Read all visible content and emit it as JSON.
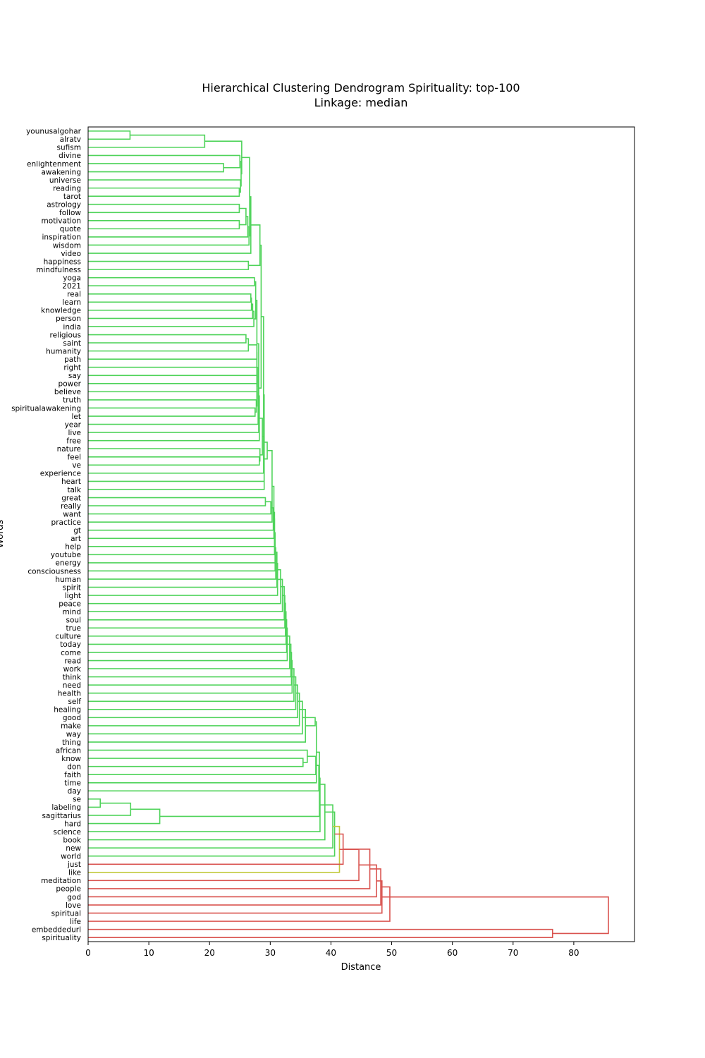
{
  "chart_data": {
    "type": "dendrogram",
    "orientation": "horizontal",
    "title": "Hierarchical Clustering Dendrogram Spirituality: top-100",
    "subtitle": "Linkage: median",
    "xlabel": "Distance",
    "ylabel": "Words",
    "xlim": [
      0,
      90
    ],
    "xticks": [
      0,
      10,
      20,
      30,
      40,
      50,
      60,
      70,
      80
    ],
    "grid": false,
    "colors": {
      "green_cluster": "#4fd35a",
      "yellow_cluster": "#c2c93c",
      "above_threshold": "#d9534f",
      "frame": "#000000"
    },
    "leaves": [
      "younusalgohar",
      "alratv",
      "sufism",
      "divine",
      "enlightenment",
      "awakening",
      "universe",
      "reading",
      "tarot",
      "astrology",
      "follow",
      "motivation",
      "quote",
      "inspiration",
      "wisdom",
      "video",
      "happiness",
      "mindfulness",
      "yoga",
      "2021",
      "real",
      "learn",
      "knowledge",
      "person",
      "india",
      "religious",
      "saint",
      "humanity",
      "path",
      "right",
      "say",
      "power",
      "believe",
      "truth",
      "spiritualawakening",
      "let",
      "year",
      "live",
      "free",
      "nature",
      "feel",
      "ve",
      "experience",
      "heart",
      "talk",
      "great",
      "really",
      "want",
      "practice",
      "gt",
      "art",
      "help",
      "youtube",
      "energy",
      "consciousness",
      "human",
      "spirit",
      "light",
      "peace",
      "mind",
      "soul",
      "true",
      "culture",
      "today",
      "come",
      "read",
      "work",
      "think",
      "need",
      "health",
      "self",
      "healing",
      "good",
      "make",
      "way",
      "thing",
      "african",
      "know",
      "don",
      "faith",
      "time",
      "day",
      "se",
      "labeling",
      "sagittarius",
      "hard",
      "science",
      "book",
      "new",
      "world",
      "just",
      "like",
      "meditation",
      "people",
      "god",
      "love",
      "spiritual",
      "life",
      "embeddedurl",
      "spirituality"
    ]
  }
}
